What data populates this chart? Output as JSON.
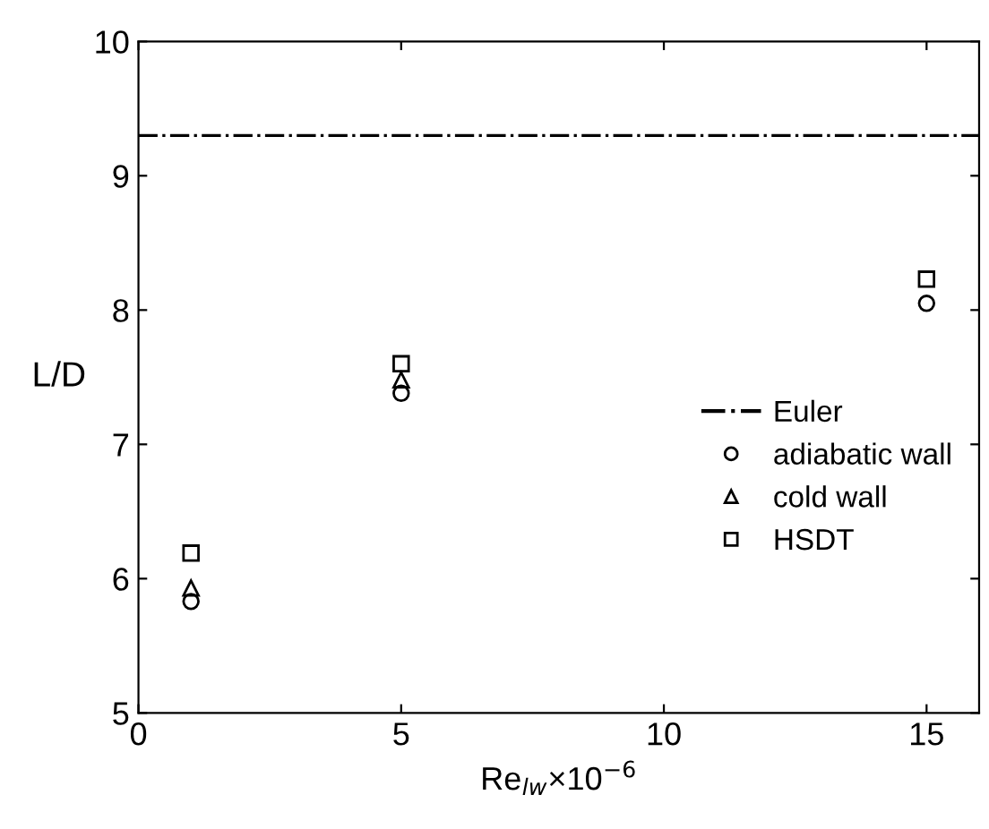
{
  "chart_data": {
    "type": "scatter",
    "xlabel": "Re$_{lw}$×10$^{−6}$",
    "ylabel": "L/D",
    "xlim": [
      0,
      16
    ],
    "xticks": [
      0,
      5,
      10,
      15
    ],
    "ylim": [
      5,
      10
    ],
    "yticks": [
      5,
      6,
      7,
      8,
      9,
      10
    ],
    "series": [
      {
        "name": "adiabatic wall",
        "color": "#000000",
        "marker": "circle",
        "x": [
          1,
          5,
          15
        ],
        "values": [
          5.83,
          7.38,
          8.05
        ]
      },
      {
        "name": "cold wall",
        "color": "#000000",
        "marker": "triangle",
        "x": [
          1,
          5
        ],
        "values": [
          5.93,
          7.48
        ]
      },
      {
        "name": "HSDT",
        "color": "#000000",
        "marker": "square",
        "x": [
          1,
          5,
          15
        ],
        "values": [
          6.19,
          7.6,
          8.23
        ]
      }
    ],
    "ref_lines": [
      {
        "axis": "y",
        "value": 9.3,
        "label": "Euler",
        "color": "#000000",
        "line_style": "dashdot"
      }
    ],
    "legend": "center right",
    "grid": false
  }
}
